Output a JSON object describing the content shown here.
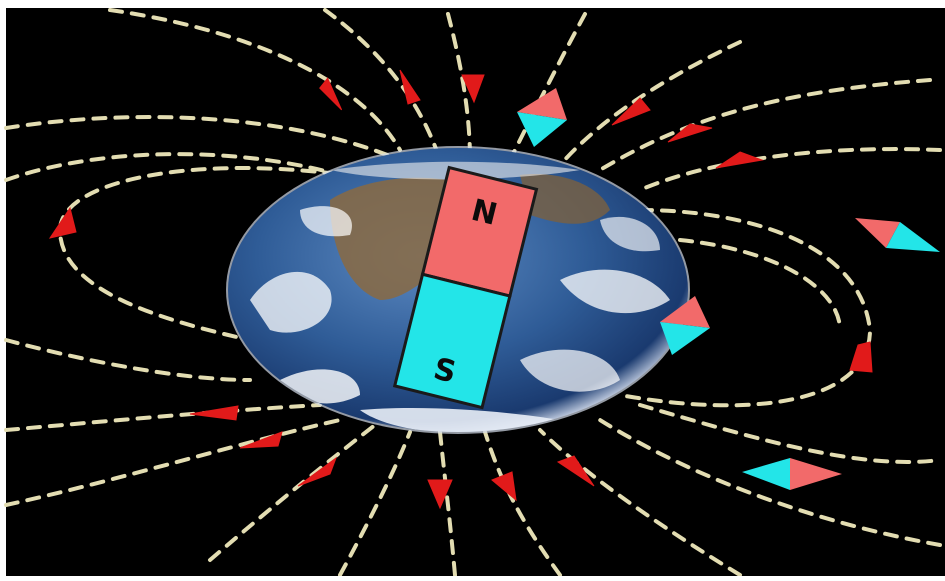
{
  "diagram": {
    "magnet": {
      "north_label": "N",
      "south_label": "S"
    },
    "colors": {
      "frame": "#ffffff",
      "background": "#000000",
      "field_line": "#e3ddb2",
      "arrow": "#e11a1a",
      "north": "#f26a6a",
      "south": "#23e5e8",
      "ocean_dark": "#1a3a6f",
      "ocean_mid": "#2f5c97",
      "land": "#8a6a42",
      "cloud": "#ffffff"
    },
    "icons": {
      "arrow": "red-triangle-arrow-icon",
      "compass": "compass-needle-icon",
      "earth": "earth-globe-icon"
    }
  }
}
